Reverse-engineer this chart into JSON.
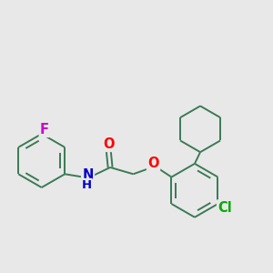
{
  "background_color": "#e8e8e8",
  "bond_color": "#3a7a55",
  "atom_colors": {
    "O": "#ff0000",
    "N": "#0000cc",
    "F": "#cc00cc",
    "Cl": "#00aa00",
    "C": "#3a7a55",
    "H": "#3a7a55"
  },
  "bond_width": 1.4,
  "font_size": 10.5,
  "figsize": [
    3.0,
    3.0
  ],
  "dpi": 100
}
